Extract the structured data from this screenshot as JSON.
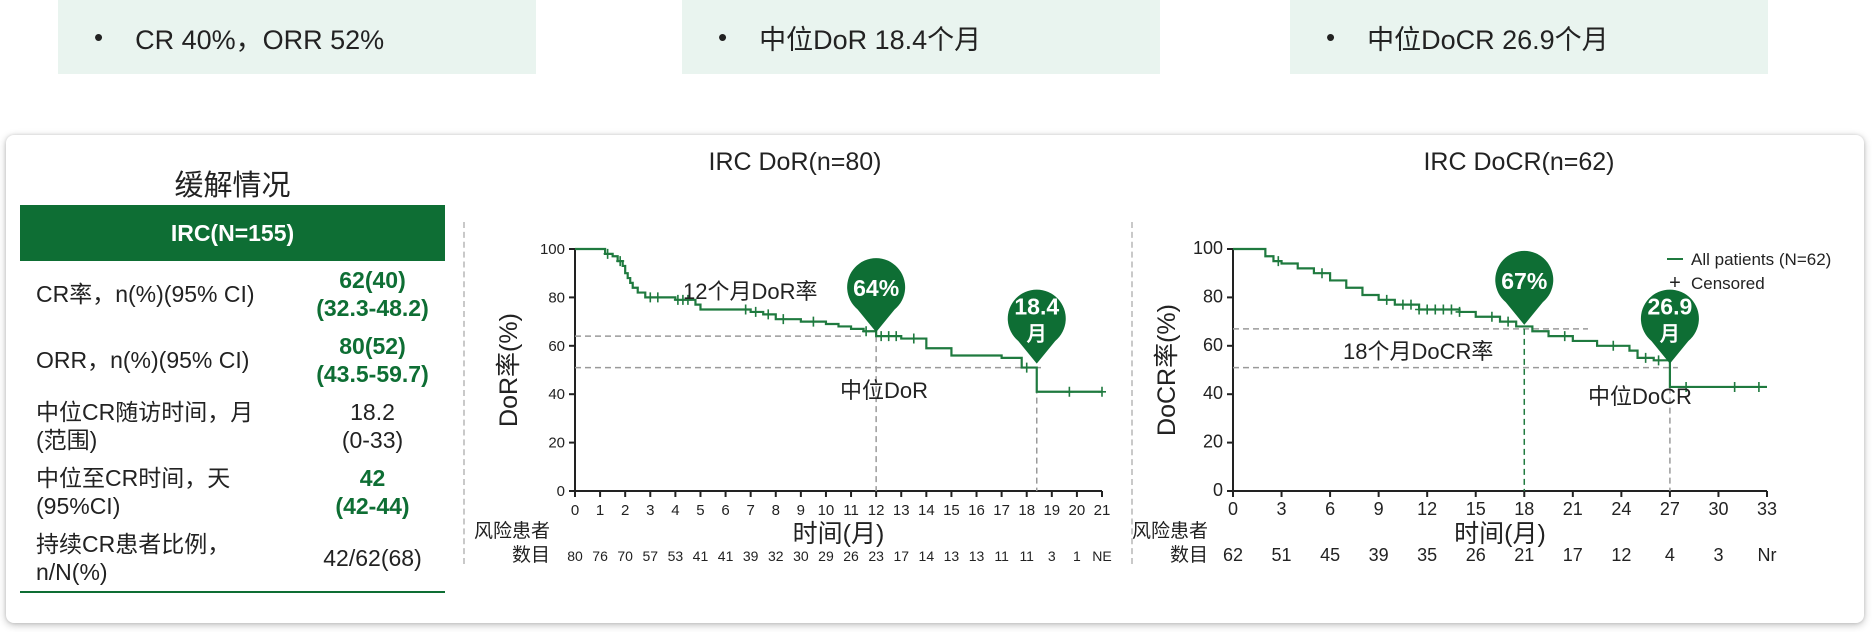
{
  "highlights": [
    {
      "bullet": "•",
      "text": "CR 40%，ORR 52%"
    },
    {
      "bullet": "•",
      "text": "中位DoR 18.4个月"
    },
    {
      "bullet": "•",
      "text": "中位DoCR 26.9个月"
    }
  ],
  "response_table": {
    "title": "缓解情况",
    "header": "IRC(N=155)",
    "rows": [
      {
        "label_lines": [
          "CR率，n(%)(95% CI)"
        ],
        "value_lines": [
          "62(40)",
          "(32.3-48.2)"
        ],
        "highlight": true
      },
      {
        "label_lines": [
          "ORR，n(%)(95% CI)"
        ],
        "value_lines": [
          "80(52)",
          "(43.5-59.7)"
        ],
        "highlight": true
      },
      {
        "label_lines": [
          "中位CR随访时间，月",
          "(范围)"
        ],
        "value_lines": [
          "18.2",
          "(0-33)"
        ],
        "highlight": false
      },
      {
        "label_lines": [
          "中位至CR时间，天",
          "(95%CI)"
        ],
        "value_lines": [
          "42",
          "(42-44)"
        ],
        "highlight": true
      },
      {
        "label_lines": [
          "持续CR患者比例，",
          "n/N(%)"
        ],
        "value_lines": [
          "42/62(68)"
        ],
        "highlight": false
      }
    ]
  },
  "colors": {
    "brand_green": "#0e6e34",
    "curve_green": "#1f7a3f",
    "pill_bg": "#e9f4ef"
  },
  "chart_data": [
    {
      "type": "line",
      "title": "IRC DoR(n=80)",
      "xlabel": "时间(月)",
      "ylabel": "DoR率(%)",
      "xlim": [
        0,
        21
      ],
      "ylim": [
        0,
        100
      ],
      "x_ticks": [
        0,
        1,
        2,
        3,
        4,
        5,
        6,
        7,
        8,
        9,
        10,
        11,
        12,
        13,
        14,
        15,
        16,
        17,
        18,
        19,
        20,
        21
      ],
      "y_ticks": [
        0,
        20,
        40,
        60,
        80,
        100
      ],
      "grid": false,
      "series": [
        {
          "step": true,
          "x": [
            0,
            1.2,
            1.5,
            1.7,
            1.9,
            2.0,
            2.1,
            2.2,
            2.3,
            2.5,
            2.8,
            4.0,
            4.8,
            5.0,
            7.0,
            7.5,
            8.0,
            9.0,
            10.0,
            10.5,
            11.0,
            11.5,
            12.0,
            13.0,
            14.0,
            15.0,
            17.0,
            17.8,
            18.4,
            21.0
          ],
          "y": [
            100,
            98,
            97,
            95,
            93,
            90,
            88,
            86,
            84,
            82,
            80,
            79,
            77,
            75,
            74,
            73,
            71,
            70,
            69,
            68,
            67,
            66,
            64,
            63,
            59,
            56,
            55,
            51,
            41,
            41
          ]
        }
      ],
      "censor_x": [
        1.3,
        1.8,
        3.0,
        3.3,
        4.1,
        4.3,
        4.5,
        6.8,
        7.2,
        7.7,
        8.3,
        9.5,
        11.6,
        12.2,
        12.5,
        12.8,
        13.5,
        18.0,
        19.7,
        21.0
      ],
      "milestone_label": "12个月DoR率",
      "median_label": "中位DoR",
      "milestone": {
        "x": 12,
        "y": 64,
        "badge": "64%"
      },
      "median": {
        "x": 18.4,
        "y": 51,
        "badge_lines": [
          "18.4",
          "月"
        ]
      },
      "risk_table": {
        "label_lines": [
          "风险患者",
          "数目"
        ],
        "counts": [
          "80",
          "76",
          "70",
          "57",
          "53",
          "41",
          "41",
          "39",
          "32",
          "30",
          "29",
          "26",
          "23",
          "17",
          "14",
          "13",
          "13",
          "11",
          "11",
          "3",
          "1",
          "NE"
        ]
      }
    },
    {
      "type": "line",
      "title": "IRC DoCR(n=62)",
      "xlabel": "时间(月)",
      "ylabel": "DoCR率(%)",
      "xlim": [
        0,
        33
      ],
      "ylim": [
        0,
        100
      ],
      "x_ticks": [
        0,
        3,
        6,
        9,
        12,
        15,
        18,
        21,
        24,
        27,
        30,
        33
      ],
      "y_ticks": [
        0,
        20,
        40,
        60,
        80,
        100
      ],
      "grid": false,
      "legend": {
        "position": "top-right",
        "entries": [
          "All patients (N=62)",
          "Censored"
        ],
        "censored_symbol": "+"
      },
      "series": [
        {
          "name": "All patients (N=62)",
          "step": true,
          "x": [
            0,
            2.0,
            2.5,
            3.0,
            4.0,
            5.0,
            6.0,
            7.0,
            8.0,
            9.0,
            10.0,
            11.5,
            14.0,
            15.0,
            16.5,
            17.5,
            18.5,
            19.5,
            21.0,
            22.5,
            24.5,
            25.0,
            26.0,
            27.0,
            33.0
          ],
          "y": [
            100,
            97,
            95,
            94,
            92,
            90,
            87,
            84,
            81,
            79,
            77,
            75,
            74,
            72,
            70,
            68,
            66,
            64,
            62,
            60,
            58,
            55,
            54,
            43,
            43
          ]
        }
      ],
      "censor_x": [
        2.8,
        5.5,
        9.5,
        10.5,
        11.0,
        11.5,
        12.0,
        12.5,
        13.0,
        13.5,
        14.0,
        16.0,
        17.0,
        20.5,
        23.5,
        25.5,
        26.3,
        28.0,
        31.0,
        32.5
      ],
      "milestone_label": "18个月DoCR率",
      "median_label": "中位DoCR",
      "milestone": {
        "x": 18,
        "y": 67,
        "badge": "67%"
      },
      "median": {
        "x": 27,
        "y": 51,
        "badge_lines": [
          "26.9",
          "月"
        ]
      },
      "risk_table": {
        "label_lines": [
          "风险患者",
          "数目"
        ],
        "counts": [
          "62",
          "51",
          "45",
          "39",
          "35",
          "26",
          "21",
          "17",
          "12",
          "4",
          "3",
          "Nr"
        ]
      }
    }
  ]
}
